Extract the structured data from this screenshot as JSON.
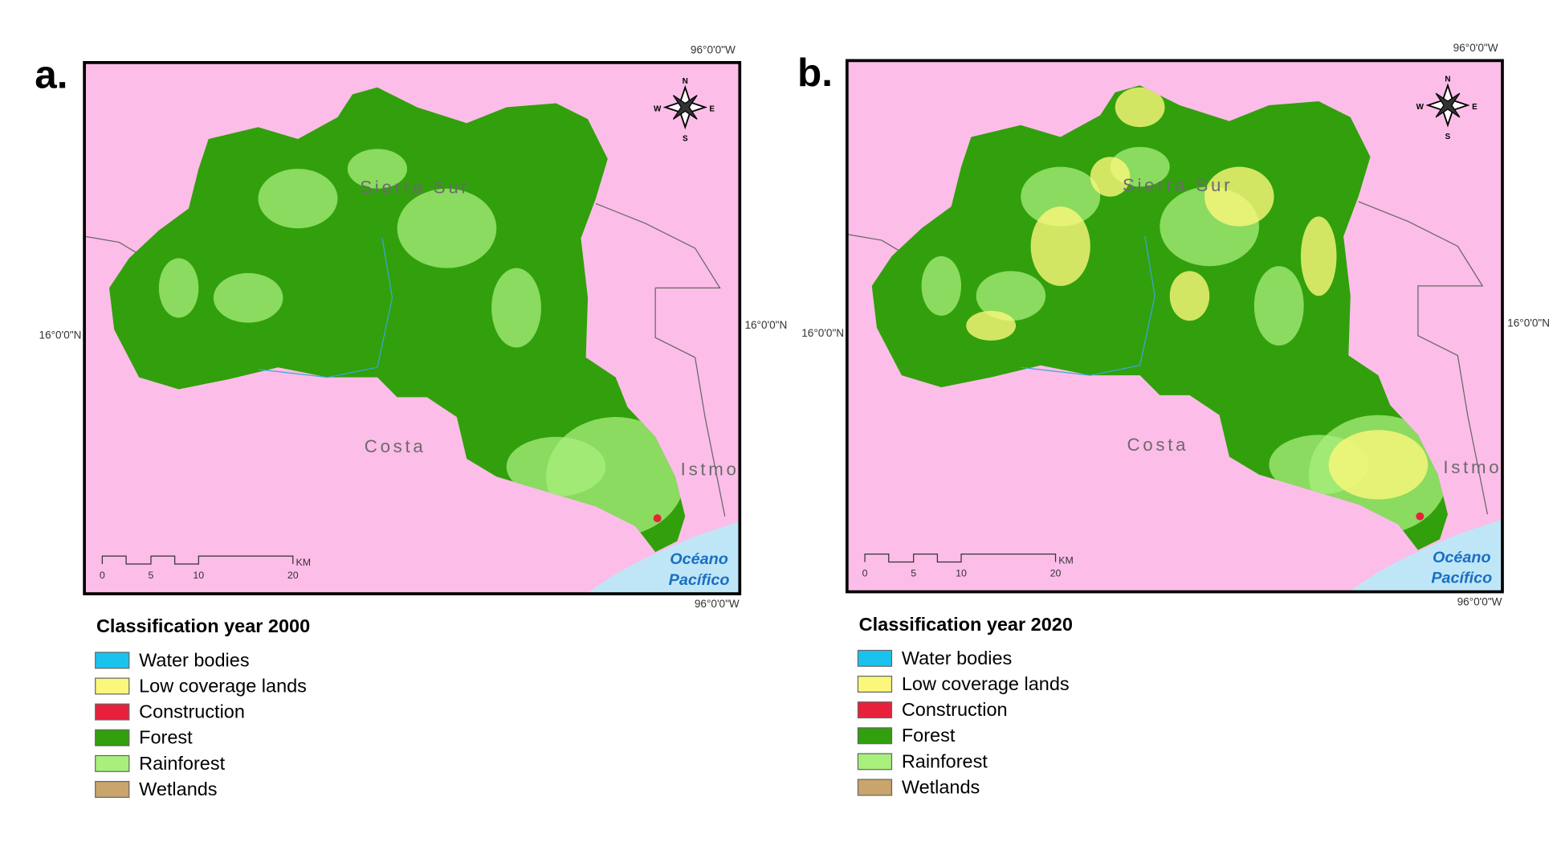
{
  "panels": [
    {
      "label": "a.",
      "lon_top": "96°0'0\"W",
      "lon_bottom": "96°0'0\"W",
      "lat_left": "16°0'0\"N",
      "lat_right": "16°0'0\"N",
      "places": [
        "Sierra Sur",
        "Costa",
        "Istmo"
      ],
      "ocean": [
        "Océano",
        "Pacífico"
      ],
      "scale": [
        "0",
        "5",
        "10",
        "20"
      ],
      "scale_unit": "KM",
      "compass": {
        "n": "N",
        "s": "S",
        "e": "E",
        "w": "W"
      },
      "legend": {
        "title": "Classification year 2000",
        "items": [
          {
            "label": "Water bodies",
            "color": "#19c3ee"
          },
          {
            "label": "Low coverage lands",
            "color": "#fbf77a"
          },
          {
            "label": "Construction",
            "color": "#e8203c"
          },
          {
            "label": "Forest",
            "color": "#31a00c"
          },
          {
            "label": "Rainforest",
            "color": "#a8ef7c"
          },
          {
            "label": "Wetlands",
            "color": "#c9a46c"
          }
        ]
      }
    },
    {
      "label": "b.",
      "lon_top": "96°0'0\"W",
      "lon_bottom": "96°0'0\"W",
      "lat_left": "16°0'0\"N",
      "lat_right": "16°0'0\"N",
      "places": [
        "Sierra Sur",
        "Costa",
        "Istmo"
      ],
      "ocean": [
        "Océano",
        "Pacífico"
      ],
      "scale": [
        "0",
        "5",
        "10",
        "20"
      ],
      "scale_unit": "KM",
      "compass": {
        "n": "N",
        "s": "S",
        "e": "E",
        "w": "W"
      },
      "legend": {
        "title": "Classification year 2020",
        "items": [
          {
            "label": "Water bodies",
            "color": "#19c3ee"
          },
          {
            "label": "Low coverage lands",
            "color": "#fbf77a"
          },
          {
            "label": "Construction",
            "color": "#e8203c"
          },
          {
            "label": "Forest",
            "color": "#31a00c"
          },
          {
            "label": "Rainforest",
            "color": "#a8ef7c"
          },
          {
            "label": "Wetlands",
            "color": "#c9a46c"
          }
        ]
      }
    }
  ]
}
